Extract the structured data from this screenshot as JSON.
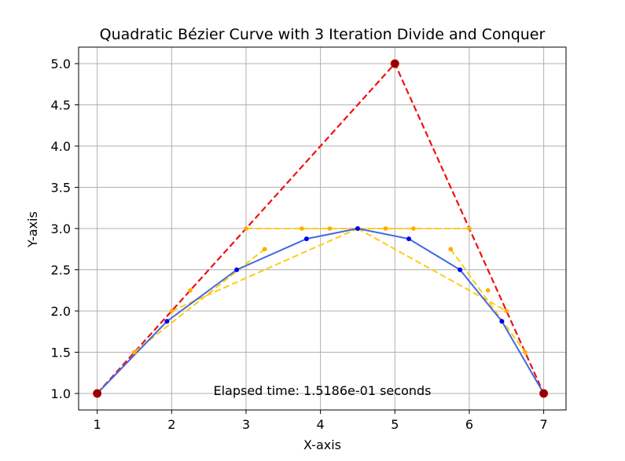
{
  "chart_data": {
    "type": "line",
    "title": "Quadratic Bézier Curve with 3 Iteration Divide and Conquer",
    "xlabel": "X-axis",
    "ylabel": "Y-axis",
    "xlim": [
      0.75,
      7.3
    ],
    "ylim": [
      0.8,
      5.2
    ],
    "xticks": [
      1,
      2,
      3,
      4,
      5,
      6,
      7
    ],
    "xtick_labels": [
      "1",
      "2",
      "3",
      "4",
      "5",
      "6",
      "7"
    ],
    "yticks": [
      1.0,
      1.5,
      2.0,
      2.5,
      3.0,
      3.5,
      4.0,
      4.5,
      5.0
    ],
    "ytick_labels": [
      "1.0",
      "1.5",
      "2.0",
      "2.5",
      "3.0",
      "3.5",
      "4.0",
      "4.5",
      "5.0"
    ],
    "grid": true,
    "annotation": "Elapsed time: 1.5186e-01 seconds",
    "colors": {
      "control": "#ee1111",
      "control_marker": "#8b0000",
      "construction": "#ffcc11",
      "construction_marker": "#ffaa00",
      "curve": "#4169e1",
      "curve_marker": "#0000ee",
      "grid": "#b0b0b0"
    },
    "control_points": [
      {
        "x": 1,
        "y": 1
      },
      {
        "x": 5,
        "y": 5
      },
      {
        "x": 7,
        "y": 1
      }
    ],
    "construction_lines": [
      [
        {
          "x": 3,
          "y": 3
        },
        {
          "x": 6,
          "y": 3
        }
      ],
      [
        {
          "x": 2,
          "y": 2
        },
        {
          "x": 4.5,
          "y": 3
        }
      ],
      [
        {
          "x": 4.5,
          "y": 3
        },
        {
          "x": 6.5,
          "y": 2
        }
      ],
      [
        {
          "x": 1.5,
          "y": 1.5
        },
        {
          "x": 3.25,
          "y": 2.75
        }
      ],
      [
        {
          "x": 3.75,
          "y": 3
        },
        {
          "x": 5.25,
          "y": 3
        }
      ],
      [
        {
          "x": 5.75,
          "y": 2.75
        },
        {
          "x": 6.75,
          "y": 1.5
        }
      ]
    ],
    "construction_points": [
      {
        "x": 1.5,
        "y": 1.5
      },
      {
        "x": 2.25,
        "y": 2.25
      },
      {
        "x": 3.25,
        "y": 2.75
      },
      {
        "x": 4.125,
        "y": 3
      },
      {
        "x": 4.875,
        "y": 3
      },
      {
        "x": 5.75,
        "y": 2.75
      },
      {
        "x": 6.25,
        "y": 2.25
      },
      {
        "x": 6.75,
        "y": 1.5
      }
    ],
    "curve_points": [
      {
        "x": 1,
        "y": 1
      },
      {
        "x": 1.9375,
        "y": 1.875
      },
      {
        "x": 2.875,
        "y": 2.5
      },
      {
        "x": 3.8125,
        "y": 2.875
      },
      {
        "x": 4.5,
        "y": 3
      },
      {
        "x": 5.1875,
        "y": 2.875
      },
      {
        "x": 5.875,
        "y": 2.5
      },
      {
        "x": 6.4375,
        "y": 1.875
      },
      {
        "x": 7,
        "y": 1
      }
    ]
  }
}
